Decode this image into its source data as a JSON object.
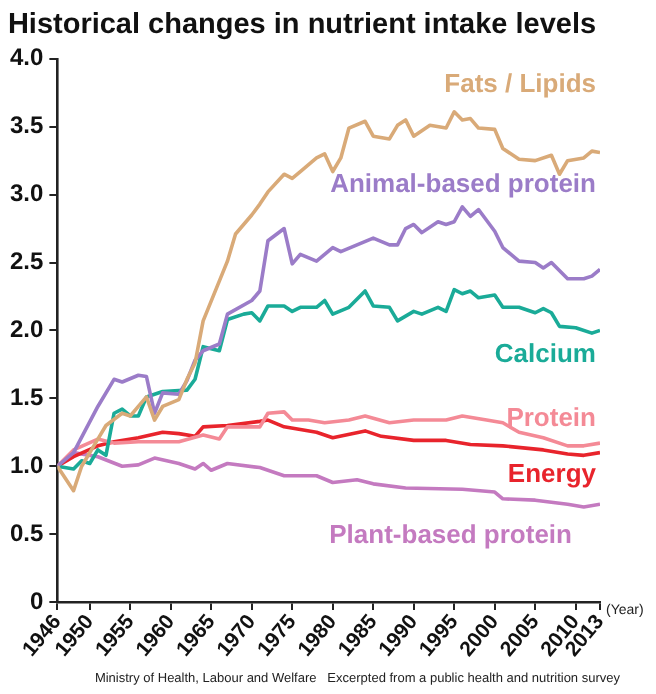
{
  "chart_data": {
    "type": "line",
    "title": "Historical changes in nutrient intake levels",
    "xlabel": "(Year)",
    "annotations": [
      "Ministry of Health, Labour and Welfare   Excerpted from a public health and nutrition survey"
    ],
    "xlim": [
      1946,
      2013
    ],
    "xticks": [
      1946,
      1950,
      1955,
      1960,
      1965,
      1970,
      1975,
      1980,
      1985,
      1990,
      1995,
      2000,
      2005,
      2010,
      2013
    ],
    "ylim": [
      0,
      4
    ],
    "yticks": [
      0,
      0.5,
      {
        "value": 1,
        "label": "1.0"
      },
      1.5,
      {
        "value": 2,
        "label": "2.0"
      },
      2.5,
      {
        "value": 3,
        "label": "3.0"
      },
      3.5,
      {
        "value": 4,
        "label": "4.0"
      }
    ],
    "grid": false,
    "legend": false,
    "series": [
      {
        "name": "Fats / Lipids",
        "color": "#d9aa78",
        "x": [
          1946,
          1948,
          1949,
          1951,
          1952,
          1954,
          1955,
          1956,
          1957,
          1958,
          1959,
          1961,
          1962,
          1963,
          1964,
          1967,
          1968,
          1970,
          1971,
          1972,
          1974,
          1975,
          1976,
          1978,
          1979,
          1980,
          1981,
          1982,
          1984,
          1985,
          1987,
          1988,
          1989,
          1990,
          1992,
          1994,
          1995,
          1996,
          1997,
          1998,
          2000,
          2001,
          2003,
          2005,
          2007,
          2008,
          2009,
          2011,
          2012,
          2013
        ],
        "values": [
          1.0,
          0.82,
          1.0,
          1.2,
          1.3,
          1.39,
          1.37,
          1.44,
          1.51,
          1.34,
          1.44,
          1.49,
          1.64,
          1.76,
          2.07,
          2.51,
          2.71,
          2.85,
          2.93,
          3.02,
          3.15,
          3.12,
          3.17,
          3.27,
          3.3,
          3.17,
          3.27,
          3.49,
          3.54,
          3.43,
          3.41,
          3.51,
          3.55,
          3.43,
          3.51,
          3.49,
          3.61,
          3.55,
          3.56,
          3.49,
          3.48,
          3.34,
          3.26,
          3.25,
          3.29,
          3.15,
          3.25,
          3.27,
          3.32,
          3.31
        ]
      },
      {
        "name": "Animal-based protein",
        "color": "#9b7cc8",
        "x": [
          1946,
          1948,
          1951,
          1953,
          1954,
          1956,
          1957,
          1958,
          1959,
          1961,
          1962,
          1963,
          1964,
          1966,
          1967,
          1970,
          1971,
          1972,
          1974,
          1975,
          1976,
          1978,
          1980,
          1981,
          1983,
          1985,
          1987,
          1988,
          1989,
          1990,
          1991,
          1993,
          1994,
          1995,
          1996,
          1997,
          1998,
          2000,
          2001,
          2003,
          2005,
          2006,
          2007,
          2009,
          2011,
          2012,
          2013
        ],
        "values": [
          1.0,
          1.1,
          1.44,
          1.64,
          1.62,
          1.67,
          1.66,
          1.39,
          1.54,
          1.53,
          1.63,
          1.78,
          1.85,
          1.9,
          2.12,
          2.22,
          2.29,
          2.66,
          2.75,
          2.49,
          2.56,
          2.51,
          2.61,
          2.58,
          2.63,
          2.68,
          2.63,
          2.63,
          2.75,
          2.78,
          2.72,
          2.8,
          2.78,
          2.8,
          2.91,
          2.84,
          2.89,
          2.73,
          2.61,
          2.51,
          2.5,
          2.46,
          2.5,
          2.38,
          2.38,
          2.4,
          2.45
        ]
      },
      {
        "name": "Calcium",
        "color": "#1aab98",
        "x": [
          1946,
          1948,
          1949,
          1950,
          1951,
          1952,
          1953,
          1954,
          1955,
          1956,
          1957,
          1959,
          1962,
          1963,
          1964,
          1966,
          1967,
          1969,
          1970,
          1971,
          1972,
          1974,
          1975,
          1976,
          1978,
          1979,
          1980,
          1982,
          1984,
          1985,
          1987,
          1988,
          1990,
          1991,
          1993,
          1994,
          1995,
          1996,
          1997,
          1998,
          2000,
          2001,
          2003,
          2005,
          2006,
          2007,
          2008,
          2010,
          2012,
          2013
        ],
        "values": [
          1.0,
          0.98,
          1.04,
          1.02,
          1.12,
          1.08,
          1.39,
          1.42,
          1.37,
          1.37,
          1.51,
          1.55,
          1.56,
          1.64,
          1.88,
          1.85,
          2.08,
          2.12,
          2.13,
          2.07,
          2.18,
          2.18,
          2.14,
          2.17,
          2.17,
          2.22,
          2.12,
          2.17,
          2.29,
          2.18,
          2.17,
          2.07,
          2.14,
          2.12,
          2.17,
          2.14,
          2.3,
          2.27,
          2.29,
          2.24,
          2.26,
          2.17,
          2.17,
          2.13,
          2.16,
          2.13,
          2.03,
          2.02,
          1.98,
          2.0
        ]
      },
      {
        "name": "Protein",
        "color": "#f48a96",
        "x": [
          1946,
          1948,
          1951,
          1953,
          1956,
          1961,
          1964,
          1966,
          1967,
          1971,
          1972,
          1974,
          1975,
          1977,
          1979,
          1982,
          1984,
          1987,
          1990,
          1994,
          1996,
          1999,
          2001,
          2003,
          2006,
          2009,
          2011,
          2013
        ],
        "values": [
          1.0,
          1.12,
          1.2,
          1.17,
          1.18,
          1.18,
          1.23,
          1.2,
          1.29,
          1.29,
          1.39,
          1.4,
          1.34,
          1.34,
          1.32,
          1.34,
          1.37,
          1.32,
          1.34,
          1.34,
          1.37,
          1.34,
          1.32,
          1.25,
          1.21,
          1.15,
          1.15,
          1.17
        ]
      },
      {
        "name": "Energy",
        "color": "#e8242c",
        "x": [
          1946,
          1948,
          1951,
          1953,
          1956,
          1959,
          1961,
          1963,
          1964,
          1967,
          1971,
          1972,
          1974,
          1978,
          1980,
          1984,
          1986,
          1990,
          1994,
          1997,
          2001,
          2006,
          2009,
          2011,
          2013
        ],
        "values": [
          1.0,
          1.07,
          1.15,
          1.18,
          1.21,
          1.25,
          1.24,
          1.22,
          1.29,
          1.3,
          1.33,
          1.34,
          1.29,
          1.25,
          1.21,
          1.26,
          1.22,
          1.19,
          1.19,
          1.16,
          1.15,
          1.12,
          1.09,
          1.08,
          1.1
        ]
      },
      {
        "name": "Plant-based protein",
        "color": "#c47ac0",
        "x": [
          1946,
          1948,
          1951,
          1954,
          1956,
          1958,
          1961,
          1963,
          1964,
          1965,
          1967,
          1971,
          1974,
          1978,
          1980,
          1983,
          1985,
          1989,
          1996,
          2000,
          2001,
          2005,
          2009,
          2011,
          2013
        ],
        "values": [
          1.0,
          1.1,
          1.07,
          1.0,
          1.01,
          1.06,
          1.02,
          0.98,
          1.02,
          0.97,
          1.02,
          0.99,
          0.93,
          0.93,
          0.88,
          0.9,
          0.87,
          0.84,
          0.83,
          0.81,
          0.76,
          0.75,
          0.72,
          0.7,
          0.72
        ]
      }
    ]
  }
}
